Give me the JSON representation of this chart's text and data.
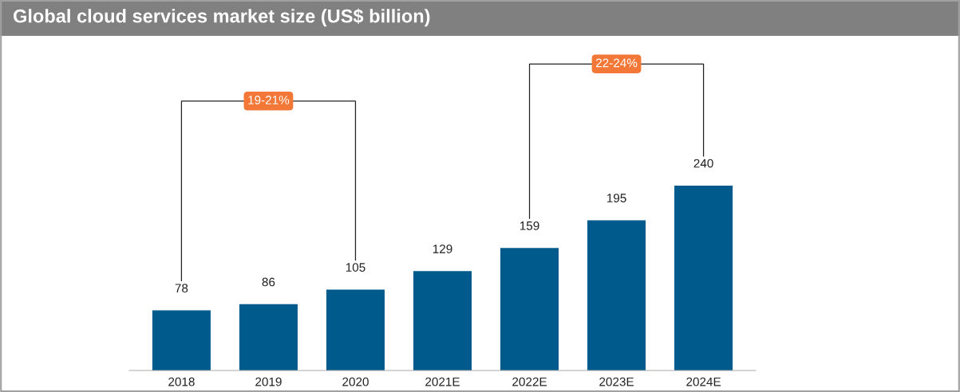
{
  "chart_data": {
    "type": "bar",
    "title": "Global cloud services market size (US$ billion)",
    "categories": [
      "2018",
      "2019",
      "2020",
      "2021E",
      "2022E",
      "2023E",
      "2024E"
    ],
    "values": [
      78,
      86,
      105,
      129,
      159,
      195,
      240
    ],
    "color": "#005a8c",
    "data_labels": true,
    "annotations": [
      "19-21%",
      "22-24%"
    ]
  }
}
